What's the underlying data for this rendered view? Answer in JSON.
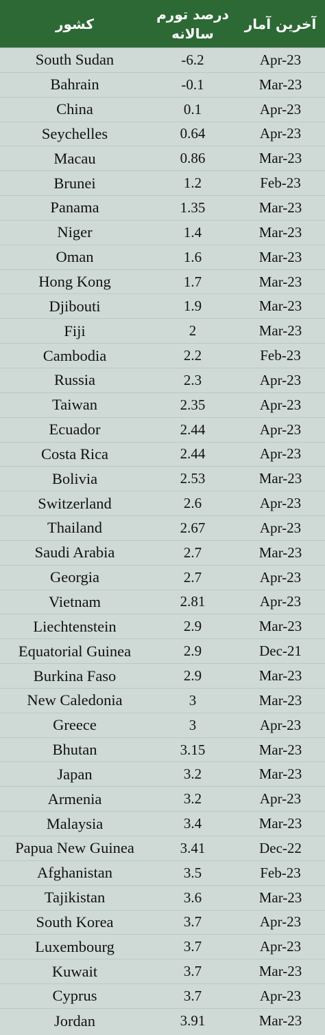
{
  "header": {
    "country_label": "کشور",
    "rate_label": "درصد تورم سالانه",
    "date_label": "آخرین آمار"
  },
  "rows": [
    {
      "country": "South Sudan",
      "rate": "-6.2",
      "date": "Apr-23"
    },
    {
      "country": "Bahrain",
      "rate": "-0.1",
      "date": "Mar-23"
    },
    {
      "country": "China",
      "rate": "0.1",
      "date": "Apr-23"
    },
    {
      "country": "Seychelles",
      "rate": "0.64",
      "date": "Apr-23"
    },
    {
      "country": "Macau",
      "rate": "0.86",
      "date": "Mar-23"
    },
    {
      "country": "Brunei",
      "rate": "1.2",
      "date": "Feb-23"
    },
    {
      "country": "Panama",
      "rate": "1.35",
      "date": "Mar-23"
    },
    {
      "country": "Niger",
      "rate": "1.4",
      "date": "Mar-23"
    },
    {
      "country": "Oman",
      "rate": "1.6",
      "date": "Mar-23"
    },
    {
      "country": "Hong Kong",
      "rate": "1.7",
      "date": "Mar-23"
    },
    {
      "country": "Djibouti",
      "rate": "1.9",
      "date": "Mar-23"
    },
    {
      "country": "Fiji",
      "rate": "2",
      "date": "Mar-23"
    },
    {
      "country": "Cambodia",
      "rate": "2.2",
      "date": "Feb-23"
    },
    {
      "country": "Russia",
      "rate": "2.3",
      "date": "Apr-23"
    },
    {
      "country": "Taiwan",
      "rate": "2.35",
      "date": "Apr-23"
    },
    {
      "country": "Ecuador",
      "rate": "2.44",
      "date": "Apr-23"
    },
    {
      "country": "Costa Rica",
      "rate": "2.44",
      "date": "Apr-23"
    },
    {
      "country": "Bolivia",
      "rate": "2.53",
      "date": "Mar-23"
    },
    {
      "country": "Switzerland",
      "rate": "2.6",
      "date": "Apr-23"
    },
    {
      "country": "Thailand",
      "rate": "2.67",
      "date": "Apr-23"
    },
    {
      "country": "Saudi Arabia",
      "rate": "2.7",
      "date": "Mar-23"
    },
    {
      "country": "Georgia",
      "rate": "2.7",
      "date": "Apr-23"
    },
    {
      "country": "Vietnam",
      "rate": "2.81",
      "date": "Apr-23"
    },
    {
      "country": "Liechtenstein",
      "rate": "2.9",
      "date": "Mar-23"
    },
    {
      "country": "Equatorial Guinea",
      "rate": "2.9",
      "date": "Dec-21"
    },
    {
      "country": "Burkina Faso",
      "rate": "2.9",
      "date": "Mar-23"
    },
    {
      "country": "New Caledonia",
      "rate": "3",
      "date": "Mar-23"
    },
    {
      "country": "Greece",
      "rate": "3",
      "date": "Apr-23"
    },
    {
      "country": "Bhutan",
      "rate": "3.15",
      "date": "Mar-23"
    },
    {
      "country": "Japan",
      "rate": "3.2",
      "date": "Mar-23"
    },
    {
      "country": "Armenia",
      "rate": "3.2",
      "date": "Apr-23"
    },
    {
      "country": "Malaysia",
      "rate": "3.4",
      "date": "Mar-23"
    },
    {
      "country": "Papua New Guinea",
      "rate": "3.41",
      "date": "Dec-22"
    },
    {
      "country": "Afghanistan",
      "rate": "3.5",
      "date": "Feb-23"
    },
    {
      "country": "Tajikistan",
      "rate": "3.6",
      "date": "Mar-23"
    },
    {
      "country": "South Korea",
      "rate": "3.7",
      "date": "Apr-23"
    },
    {
      "country": "Luxembourg",
      "rate": "3.7",
      "date": "Apr-23"
    },
    {
      "country": "Kuwait",
      "rate": "3.7",
      "date": "Mar-23"
    },
    {
      "country": "Cyprus",
      "rate": "3.7",
      "date": "Apr-23"
    },
    {
      "country": "Jordan",
      "rate": "3.91",
      "date": "Mar-23"
    }
  ],
  "colors": {
    "header_bg": "#2d6934",
    "body_bg": "#cfdad7"
  }
}
